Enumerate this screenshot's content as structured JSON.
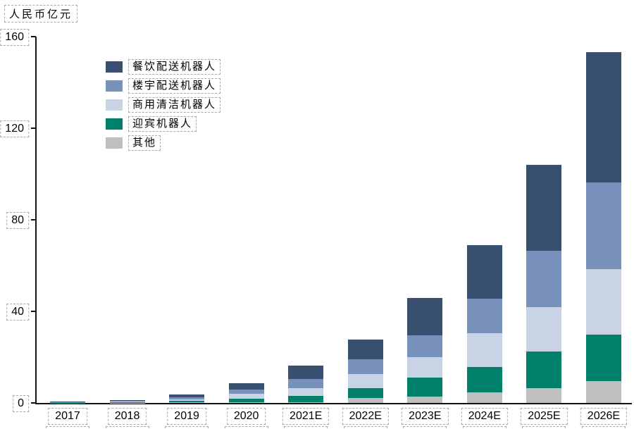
{
  "y_axis_title": "人民币亿元",
  "chart_data": {
    "type": "bar",
    "stacked": true,
    "title": "",
    "xlabel": "",
    "ylabel": "人民币亿元",
    "ylim": [
      0,
      160
    ],
    "yticks": [
      0,
      40,
      80,
      120,
      160
    ],
    "grid": false,
    "legend_position": "upper-left-inside",
    "categories": [
      "2017",
      "2018",
      "2019",
      "2020",
      "2021E",
      "2022E",
      "2023E",
      "2024E",
      "2025E",
      "2026E"
    ],
    "series": [
      {
        "name": "餐饮配送机器人",
        "color": "#394F70",
        "values": [
          0.2,
          0.4,
          1.2,
          2.7,
          5.6,
          8.7,
          16.1,
          23.5,
          37.6,
          56.8
        ]
      },
      {
        "name": "楼宇配送机器人",
        "color": "#7791BB",
        "values": [
          0.1,
          0.3,
          0.9,
          1.8,
          4.1,
          6.5,
          9.7,
          14.8,
          24.5,
          38.0
        ]
      },
      {
        "name": "商用清洁机器人",
        "color": "#C9D3E6",
        "values": [
          0.1,
          0.2,
          0.7,
          2.0,
          3.3,
          5.9,
          8.9,
          14.8,
          19.6,
          28.7
        ]
      },
      {
        "name": "迎宾机器人",
        "color": "#007F6B",
        "values": [
          0.05,
          0.2,
          0.6,
          1.6,
          2.8,
          4.5,
          8.2,
          11.3,
          15.9,
          20.1
        ]
      },
      {
        "name": "其他",
        "color": "#BFBFBF",
        "values": [
          0.05,
          0.1,
          0.2,
          0.4,
          0.4,
          2.1,
          2.8,
          4.5,
          6.5,
          9.6
        ]
      }
    ],
    "totals": [
      0.5,
      1.2,
      3.6,
      8.5,
      16.2,
      27.7,
      45.7,
      68.9,
      104.1,
      153.2
    ],
    "axis_color": "#141414",
    "annotation_box_style": "dashed-gray"
  }
}
